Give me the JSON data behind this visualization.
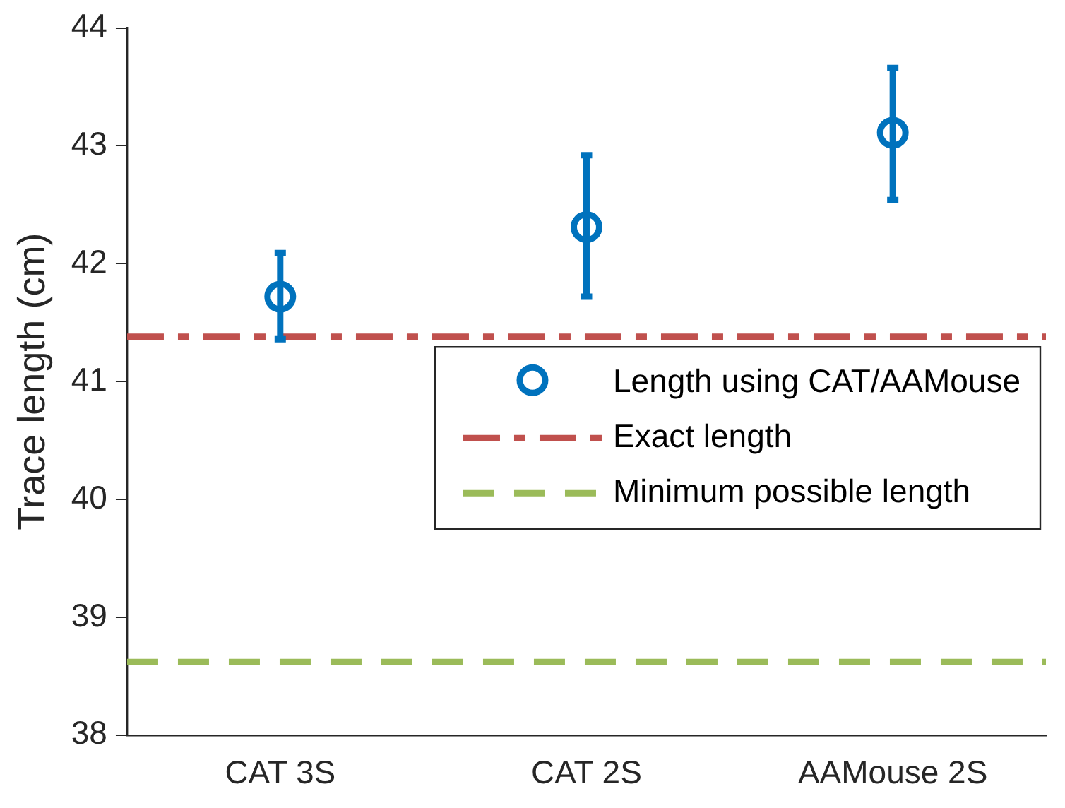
{
  "chart_data": {
    "type": "scatter",
    "ylabel": "Trace length (cm)",
    "categories": [
      "CAT 3S",
      "CAT 2S",
      "AAMouse 2S"
    ],
    "series": [
      {
        "name": "Length using CAT/AAMouse",
        "color": "#0072bd",
        "values": [
          41.72,
          42.31,
          43.11
        ],
        "errors": [
          [
            41.36,
            42.09
          ],
          [
            41.72,
            42.92
          ],
          [
            42.54,
            43.66
          ]
        ]
      }
    ],
    "ref_lines": [
      {
        "axis": "y",
        "value": 41.38,
        "label": "Exact length",
        "color": "#c0504d",
        "line_style": "dashdot"
      },
      {
        "axis": "y",
        "value": 38.62,
        "label": "Minimum possible length",
        "color": "#9bbb59",
        "line_style": "dashed"
      }
    ],
    "ylim": [
      38,
      44
    ],
    "yticks": [
      38,
      39,
      40,
      41,
      42,
      43,
      44
    ],
    "grid": false,
    "legend": "right",
    "marker": "circle"
  }
}
